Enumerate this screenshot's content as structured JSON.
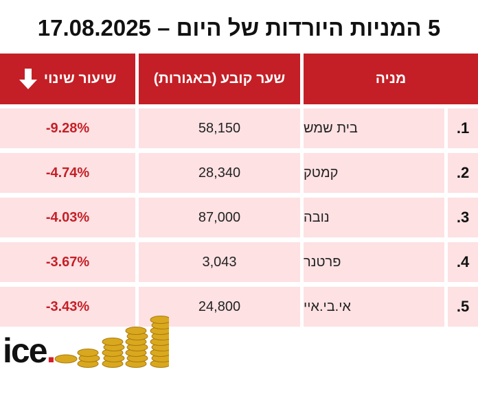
{
  "title": "5 המניות היורדות של היום – 17.08.2025",
  "headers": {
    "change": "שיעור שינוי",
    "price": "שער קובע (באגורות)",
    "stock": "מניה"
  },
  "rows": [
    {
      "rank": "1.",
      "name": "בית שמש",
      "price": "58,150",
      "change": "-9.28%"
    },
    {
      "rank": "2.",
      "name": "קמטק",
      "price": "28,340",
      "change": "-4.74%"
    },
    {
      "rank": "3.",
      "name": "נובה",
      "price": "87,000",
      "change": "-4.03%"
    },
    {
      "rank": "4.",
      "name": "פרטנר",
      "price": "3,043",
      "change": "-3.67%"
    },
    {
      "rank": "5.",
      "name": "אי.בי.איי",
      "price": "24,800",
      "change": "-3.43%"
    }
  ],
  "logo": "ice.",
  "colors": {
    "accent": "#c41f26",
    "row_bg": "#fde1e3"
  }
}
